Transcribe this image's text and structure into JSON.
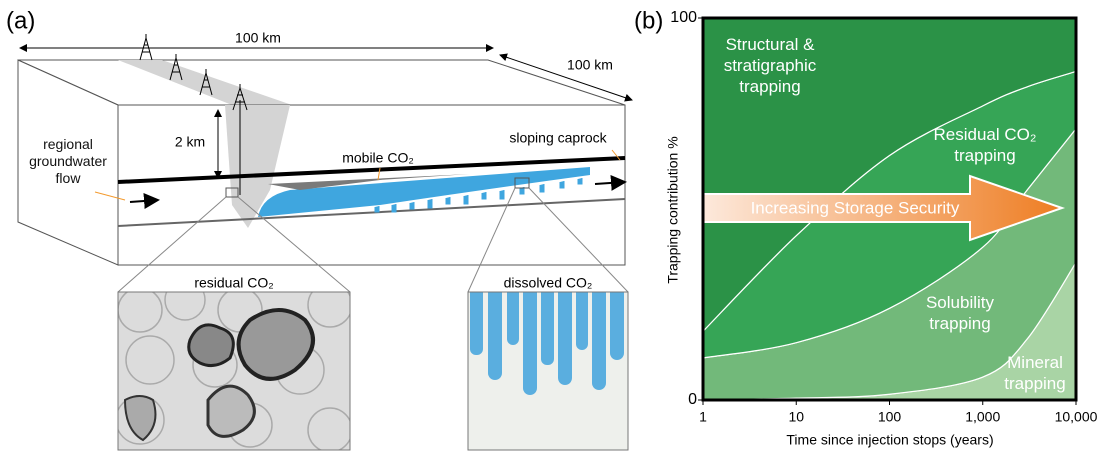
{
  "panel_a": {
    "label": "(a)",
    "length_label": "100 km",
    "width_label": "100 km",
    "depth_label": "2 km",
    "groundwater_label": "regional groundwater flow",
    "mobile_label": "mobile CO₂",
    "caprock_label": "sloping caprock",
    "residual_label": "residual CO₂",
    "dissolved_label": "dissolved CO₂"
  },
  "chart_data": {
    "type": "stacked_area",
    "panel_label": "(b)",
    "x_label": "Time since injection stops (years)",
    "y_label": "Trapping contribution %",
    "annotation": "Increasing Storage Security",
    "log_x": true,
    "x": [
      1,
      10,
      100,
      1000,
      3000,
      10000
    ],
    "xlim": [
      1,
      10000
    ],
    "xticks": [
      1,
      10,
      100,
      {
        "value": 1000,
        "label": "1,000"
      },
      {
        "value": 10000,
        "label": "10,000"
      }
    ],
    "ylim": [
      0,
      100
    ],
    "yticks": [
      0,
      100
    ],
    "series": [
      {
        "name": "Mineral trapping",
        "color": "#a9d4a5",
        "values": [
          0,
          0.5,
          1.5,
          6,
          16,
          36
        ]
      },
      {
        "name": "Solubility trapping",
        "color": "#72b97a",
        "values": [
          11,
          14.5,
          22.5,
          34,
          39,
          35
        ]
      },
      {
        "name": "Residual CO₂ trapping",
        "color": "#36a556",
        "values": [
          7,
          28,
          40,
          37,
          27,
          15
        ]
      },
      {
        "name": "Structural & stratigraphic trapping",
        "color": "#2b9247",
        "values": [
          82,
          57,
          36,
          23,
          18,
          14
        ]
      }
    ]
  }
}
